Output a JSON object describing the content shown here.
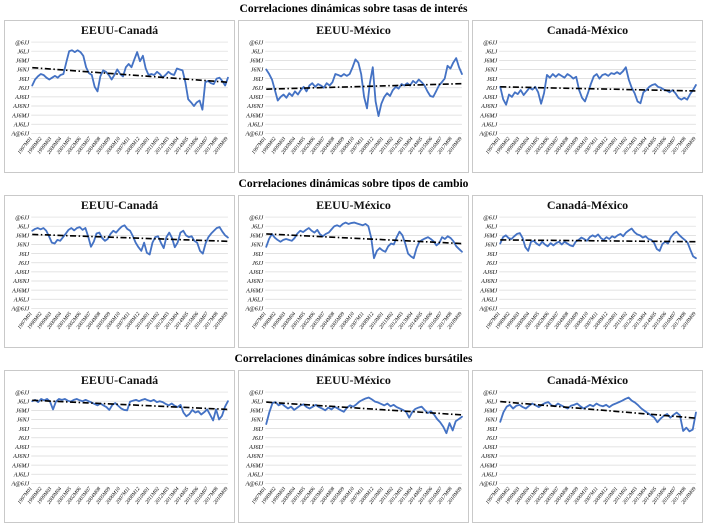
{
  "sections": [
    {
      "id": "tasas-interes",
      "title": "Correlaciones dinámicas sobre tasas de interés"
    },
    {
      "id": "tipos-cambio",
      "title": "Correlaciones dinámicas sobre tipos de cambio"
    },
    {
      "id": "indices-bursatiles",
      "title": "Correlaciones dinámicas sobre índices bursátiles"
    }
  ],
  "axes": {
    "y_tick_labels": [
      "@6JJ",
      "J6LJ",
      "J6MJ",
      "J6NJ",
      "J6IJ",
      "J6JJ",
      "AJ6IJ",
      "AJ6NJ",
      "AJ6MJ",
      "AJ6LJ",
      "A@6JJ"
    ],
    "y_tick_values": [
      1.0,
      0.8,
      0.6,
      0.4,
      0.2,
      0.0,
      -0.2,
      -0.4,
      -0.6,
      -0.8,
      -1.0
    ],
    "x_tick_labels": [
      "1997M01",
      "1998M02",
      "1999M03",
      "2000M04",
      "2001M05",
      "2002M06",
      "2003M07",
      "2004M08",
      "2005M09",
      "2006M10",
      "2007M11",
      "2008M12",
      "2010M01",
      "2011M02",
      "2012M03",
      "2013M04",
      "2014M05",
      "2015M06",
      "2016M07",
      "2017M08",
      "2018M09"
    ],
    "ylim": [
      -1,
      1
    ],
    "grid": "horizontal"
  },
  "colors": {
    "series": "#4472C4",
    "trend": "#000000",
    "grid": "#d9d9d9",
    "panel_border": "#c9c9c9",
    "text": "#000000"
  },
  "chart_data": [
    {
      "type": "line",
      "section": "Correlaciones dinámicas sobre tasas de interés",
      "title": "EEUU-Canadá",
      "xlabel": "",
      "ylabel": "",
      "ylim": [
        -1,
        1
      ],
      "x_range": [
        "1997M01",
        "2018M09"
      ],
      "legend": "none",
      "values": [
        0.05,
        0.18,
        0.25,
        0.3,
        0.28,
        0.22,
        0.18,
        0.22,
        0.26,
        0.22,
        0.28,
        0.3,
        0.55,
        0.8,
        0.82,
        0.78,
        0.82,
        0.78,
        0.7,
        0.45,
        0.32,
        0.28,
        0.02,
        -0.08,
        0.25,
        0.38,
        0.35,
        0.28,
        0.18,
        0.28,
        0.4,
        0.3,
        0.25,
        0.45,
        0.52,
        0.45,
        0.62,
        0.78,
        0.58,
        0.7,
        0.42,
        0.28,
        0.3,
        0.28,
        0.35,
        0.3,
        0.22,
        0.28,
        0.35,
        0.3,
        0.28,
        0.42,
        0.4,
        0.38,
        0.12,
        -0.25,
        -0.32,
        -0.4,
        -0.32,
        -0.28,
        -0.48,
        0.12,
        0.15,
        0.1,
        0.08,
        0.2,
        0.22,
        0.15,
        0.05,
        0.22
      ],
      "trend_line": {
        "start": 0.44,
        "end": 0.12
      }
    },
    {
      "type": "line",
      "section": "Correlaciones dinámicas sobre tasas de interés",
      "title": "EEUU-México",
      "xlabel": "",
      "ylabel": "",
      "ylim": [
        -1,
        1
      ],
      "x_range": [
        "1997M01",
        "2018M09"
      ],
      "legend": "none",
      "values": [
        0.4,
        0.3,
        0.18,
        -0.05,
        -0.28,
        -0.2,
        -0.15,
        -0.22,
        -0.12,
        -0.18,
        -0.08,
        -0.15,
        -0.05,
        0.02,
        -0.08,
        0.05,
        0.1,
        0.02,
        0.08,
        0.05,
        0.0,
        0.1,
        0.05,
        0.12,
        0.3,
        0.28,
        0.25,
        0.3,
        0.26,
        0.3,
        0.45,
        0.62,
        0.55,
        0.3,
        -0.2,
        -0.45,
        0.1,
        0.45,
        -0.3,
        -0.62,
        -0.35,
        -0.2,
        -0.12,
        -0.18,
        -0.05,
        0.02,
        -0.02,
        0.08,
        0.05,
        0.1,
        0.05,
        0.15,
        0.1,
        0.18,
        0.12,
        0.05,
        -0.08,
        -0.18,
        -0.2,
        -0.08,
        0.05,
        0.12,
        0.2,
        0.48,
        0.42,
        0.55,
        0.65,
        0.45,
        0.3
      ],
      "trend_line": {
        "start": -0.03,
        "end": 0.09
      }
    },
    {
      "type": "line",
      "section": "Correlaciones dinámicas sobre tasas de interés",
      "title": "Canadá-México",
      "xlabel": "",
      "ylabel": "",
      "ylim": [
        -1,
        1
      ],
      "x_range": [
        "1997M01",
        "2018M09"
      ],
      "legend": "none",
      "values": [
        0.02,
        -0.25,
        -0.37,
        -0.15,
        -0.2,
        -0.1,
        -0.14,
        -0.05,
        -0.16,
        -0.08,
        0.0,
        -0.04,
        0.02,
        -0.1,
        -0.35,
        -0.12,
        0.28,
        0.22,
        0.3,
        0.24,
        0.3,
        0.26,
        0.22,
        0.3,
        0.26,
        0.2,
        0.24,
        -0.05,
        -0.22,
        -0.3,
        -0.12,
        0.08,
        0.25,
        0.3,
        0.2,
        0.28,
        0.3,
        0.26,
        0.32,
        0.3,
        0.34,
        0.3,
        0.36,
        0.45,
        0.18,
        0.0,
        -0.12,
        -0.3,
        -0.34,
        -0.1,
        -0.05,
        0.02,
        0.06,
        0.08,
        0.02,
        0.0,
        -0.04,
        -0.06,
        -0.1,
        -0.05,
        -0.12,
        -0.22,
        -0.26,
        -0.22,
        -0.26,
        -0.14,
        -0.05,
        0.06
      ],
      "trend_line": {
        "start": 0.02,
        "end": -0.07
      }
    },
    {
      "type": "line",
      "section": "Correlaciones dinámicas sobre tipos de cambio",
      "title": "EEUU-Canadá",
      "xlabel": "",
      "ylabel": "",
      "ylim": [
        -1,
        1
      ],
      "x_range": [
        "1997M01",
        "2018M09"
      ],
      "legend": "none",
      "values": [
        0.7,
        0.74,
        0.76,
        0.73,
        0.76,
        0.7,
        0.58,
        0.44,
        0.42,
        0.5,
        0.48,
        0.56,
        0.64,
        0.72,
        0.76,
        0.71,
        0.76,
        0.78,
        0.72,
        0.76,
        0.58,
        0.35,
        0.46,
        0.64,
        0.66,
        0.54,
        0.48,
        0.52,
        0.63,
        0.7,
        0.66,
        0.73,
        0.79,
        0.82,
        0.74,
        0.7,
        0.58,
        0.44,
        0.34,
        0.26,
        0.44,
        0.22,
        0.18,
        0.44,
        0.56,
        0.58,
        0.44,
        0.32,
        0.56,
        0.66,
        0.54,
        0.34,
        0.44,
        0.66,
        0.7,
        0.6,
        0.56,
        0.58,
        0.48,
        0.44,
        0.26,
        0.2,
        0.42,
        0.56,
        0.64,
        0.7,
        0.76,
        0.78,
        0.68,
        0.6,
        0.55
      ],
      "trend_line": {
        "start": 0.62,
        "end": 0.47
      }
    },
    {
      "type": "line",
      "section": "Correlaciones dinámicas sobre tipos de cambio",
      "title": "EEUU-México",
      "xlabel": "",
      "ylabel": "",
      "ylim": [
        -1,
        1
      ],
      "x_range": [
        "1997M01",
        "2018M09"
      ],
      "legend": "none",
      "values": [
        0.35,
        0.52,
        0.63,
        0.55,
        0.5,
        0.46,
        0.5,
        0.52,
        0.5,
        0.48,
        0.54,
        0.64,
        0.7,
        0.67,
        0.72,
        0.76,
        0.7,
        0.66,
        0.72,
        0.62,
        0.58,
        0.63,
        0.66,
        0.73,
        0.8,
        0.82,
        0.79,
        0.85,
        0.88,
        0.85,
        0.87,
        0.88,
        0.86,
        0.84,
        0.82,
        0.85,
        0.8,
        0.55,
        0.1,
        0.26,
        0.32,
        0.27,
        0.24,
        0.36,
        0.42,
        0.4,
        0.56,
        0.68,
        0.6,
        0.42,
        0.2,
        0.14,
        0.1,
        0.32,
        0.46,
        0.5,
        0.53,
        0.56,
        0.52,
        0.47,
        0.38,
        0.43,
        0.56,
        0.52,
        0.58,
        0.54,
        0.47,
        0.36,
        0.3,
        0.24
      ],
      "trend_line": {
        "start": 0.63,
        "end": 0.42
      }
    },
    {
      "type": "line",
      "section": "Correlaciones dinámicas sobre tipos de cambio",
      "title": "Canadá-México",
      "xlabel": "",
      "ylabel": "",
      "ylim": [
        -1,
        1
      ],
      "x_range": [
        "1997M01",
        "2018M09"
      ],
      "legend": "none",
      "values": [
        0.42,
        0.56,
        0.6,
        0.54,
        0.52,
        0.58,
        0.63,
        0.65,
        0.54,
        0.34,
        0.26,
        0.46,
        0.48,
        0.42,
        0.38,
        0.46,
        0.4,
        0.36,
        0.43,
        0.38,
        0.43,
        0.46,
        0.4,
        0.46,
        0.42,
        0.38,
        0.36,
        0.46,
        0.5,
        0.55,
        0.52,
        0.48,
        0.56,
        0.6,
        0.57,
        0.62,
        0.54,
        0.5,
        0.56,
        0.52,
        0.58,
        0.55,
        0.6,
        0.63,
        0.58,
        0.66,
        0.71,
        0.75,
        0.67,
        0.62,
        0.6,
        0.55,
        0.58,
        0.52,
        0.5,
        0.44,
        0.3,
        0.26,
        0.41,
        0.46,
        0.42,
        0.56,
        0.63,
        0.68,
        0.61,
        0.55,
        0.5,
        0.44,
        0.28,
        0.14,
        0.1
      ],
      "trend_line": {
        "start": 0.5,
        "end": 0.46
      }
    },
    {
      "type": "line",
      "section": "Correlaciones dinámicas sobre índices bursátiles",
      "title": "EEUU-Canadá",
      "xlabel": "",
      "ylabel": "",
      "ylim": [
        -1,
        1
      ],
      "x_range": [
        "1997M01",
        "2018M09"
      ],
      "legend": "none",
      "values": [
        0.8,
        0.83,
        0.78,
        0.85,
        0.82,
        0.85,
        0.79,
        0.62,
        0.79,
        0.85,
        0.83,
        0.85,
        0.81,
        0.79,
        0.83,
        0.85,
        0.82,
        0.8,
        0.83,
        0.8,
        0.77,
        0.74,
        0.71,
        0.75,
        0.71,
        0.67,
        0.61,
        0.72,
        0.76,
        0.7,
        0.64,
        0.61,
        0.6,
        0.79,
        0.81,
        0.83,
        0.8,
        0.83,
        0.85,
        0.82,
        0.8,
        0.83,
        0.78,
        0.8,
        0.78,
        0.74,
        0.71,
        0.75,
        0.7,
        0.67,
        0.72,
        0.55,
        0.47,
        0.52,
        0.61,
        0.55,
        0.58,
        0.51,
        0.56,
        0.62,
        0.5,
        0.38,
        0.62,
        0.4,
        0.48,
        0.68,
        0.8
      ],
      "trend_line": {
        "start": 0.82,
        "end": 0.62
      }
    },
    {
      "type": "line",
      "section": "Correlaciones dinámicas sobre índices bursátiles",
      "title": "EEUU-México",
      "xlabel": "",
      "ylabel": "",
      "ylim": [
        -1,
        1
      ],
      "x_range": [
        "1997M01",
        "2018M09"
      ],
      "legend": "none",
      "values": [
        0.3,
        0.56,
        0.76,
        0.78,
        0.71,
        0.75,
        0.69,
        0.64,
        0.68,
        0.61,
        0.66,
        0.71,
        0.73,
        0.67,
        0.64,
        0.68,
        0.72,
        0.67,
        0.64,
        0.6,
        0.66,
        0.62,
        0.68,
        0.64,
        0.6,
        0.57,
        0.66,
        0.71,
        0.68,
        0.73,
        0.79,
        0.83,
        0.86,
        0.88,
        0.84,
        0.79,
        0.77,
        0.74,
        0.71,
        0.75,
        0.69,
        0.72,
        0.67,
        0.64,
        0.61,
        0.57,
        0.44,
        0.56,
        0.63,
        0.66,
        0.68,
        0.61,
        0.54,
        0.58,
        0.51,
        0.41,
        0.34,
        0.24,
        0.1,
        0.32,
        0.16,
        0.36,
        0.41,
        0.46
      ],
      "trend_line": {
        "start": 0.78,
        "end": 0.5
      }
    },
    {
      "type": "line",
      "section": "Correlaciones dinámicas sobre índices bursátiles",
      "title": "Canadá-México",
      "xlabel": "",
      "ylabel": "",
      "ylim": [
        -1,
        1
      ],
      "x_range": [
        "1997M01",
        "2018M09"
      ],
      "legend": "none",
      "values": [
        0.35,
        0.56,
        0.68,
        0.72,
        0.64,
        0.7,
        0.72,
        0.67,
        0.64,
        0.7,
        0.75,
        0.71,
        0.67,
        0.72,
        0.76,
        0.78,
        0.71,
        0.69,
        0.75,
        0.71,
        0.67,
        0.64,
        0.7,
        0.72,
        0.75,
        0.69,
        0.64,
        0.68,
        0.72,
        0.69,
        0.75,
        0.71,
        0.69,
        0.72,
        0.67,
        0.72,
        0.75,
        0.78,
        0.81,
        0.85,
        0.88,
        0.81,
        0.77,
        0.71,
        0.64,
        0.59,
        0.54,
        0.49,
        0.44,
        0.34,
        0.42,
        0.48,
        0.52,
        0.44,
        0.5,
        0.55,
        0.49,
        0.15,
        0.22,
        0.14,
        0.18,
        0.55
      ],
      "trend_line": {
        "start": 0.79,
        "end": 0.43
      }
    }
  ]
}
